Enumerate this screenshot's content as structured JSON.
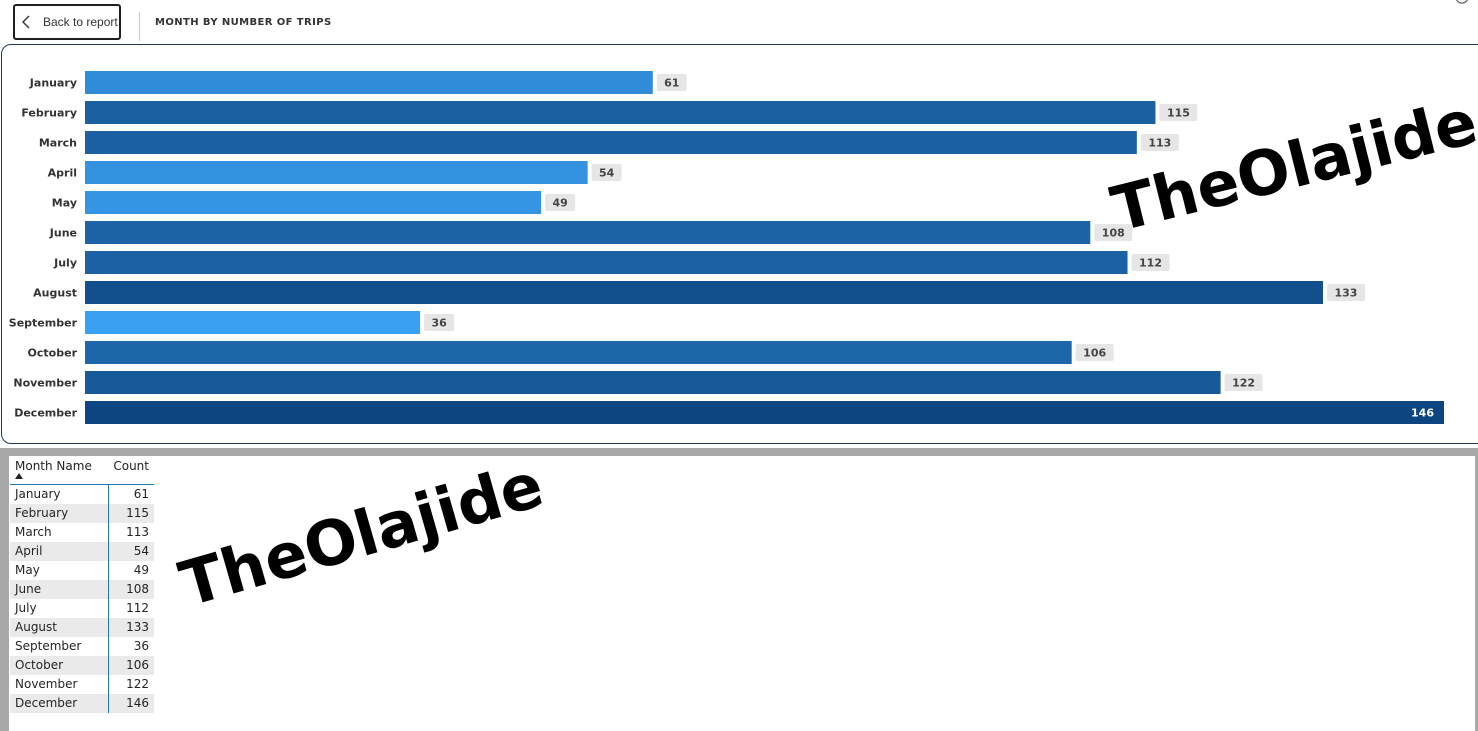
{
  "topbar": {
    "back_label": "Back to report",
    "title": "MONTH BY NUMBER OF TRIPS"
  },
  "watermark": "TheOlajide",
  "chart_data": {
    "type": "bar",
    "orientation": "horizontal",
    "categories": [
      "January",
      "February",
      "March",
      "April",
      "May",
      "June",
      "July",
      "August",
      "September",
      "October",
      "November",
      "December"
    ],
    "values": [
      61,
      115,
      113,
      54,
      49,
      108,
      112,
      133,
      36,
      106,
      122,
      146
    ],
    "title": "",
    "xlabel": "",
    "ylabel": "",
    "xlim": [
      0,
      146
    ],
    "grid": false,
    "data_labels": true,
    "color_scale": {
      "low": "#3aa0f2",
      "high": "#0d4580"
    }
  },
  "table": {
    "headers": [
      "Month Name",
      "Count"
    ],
    "sort": "ascending",
    "rows": [
      [
        "January",
        "61"
      ],
      [
        "February",
        "115"
      ],
      [
        "March",
        "113"
      ],
      [
        "April",
        "54"
      ],
      [
        "May",
        "49"
      ],
      [
        "June",
        "108"
      ],
      [
        "July",
        "112"
      ],
      [
        "August",
        "133"
      ],
      [
        "September",
        "36"
      ],
      [
        "October",
        "106"
      ],
      [
        "November",
        "122"
      ],
      [
        "December",
        "146"
      ]
    ]
  }
}
